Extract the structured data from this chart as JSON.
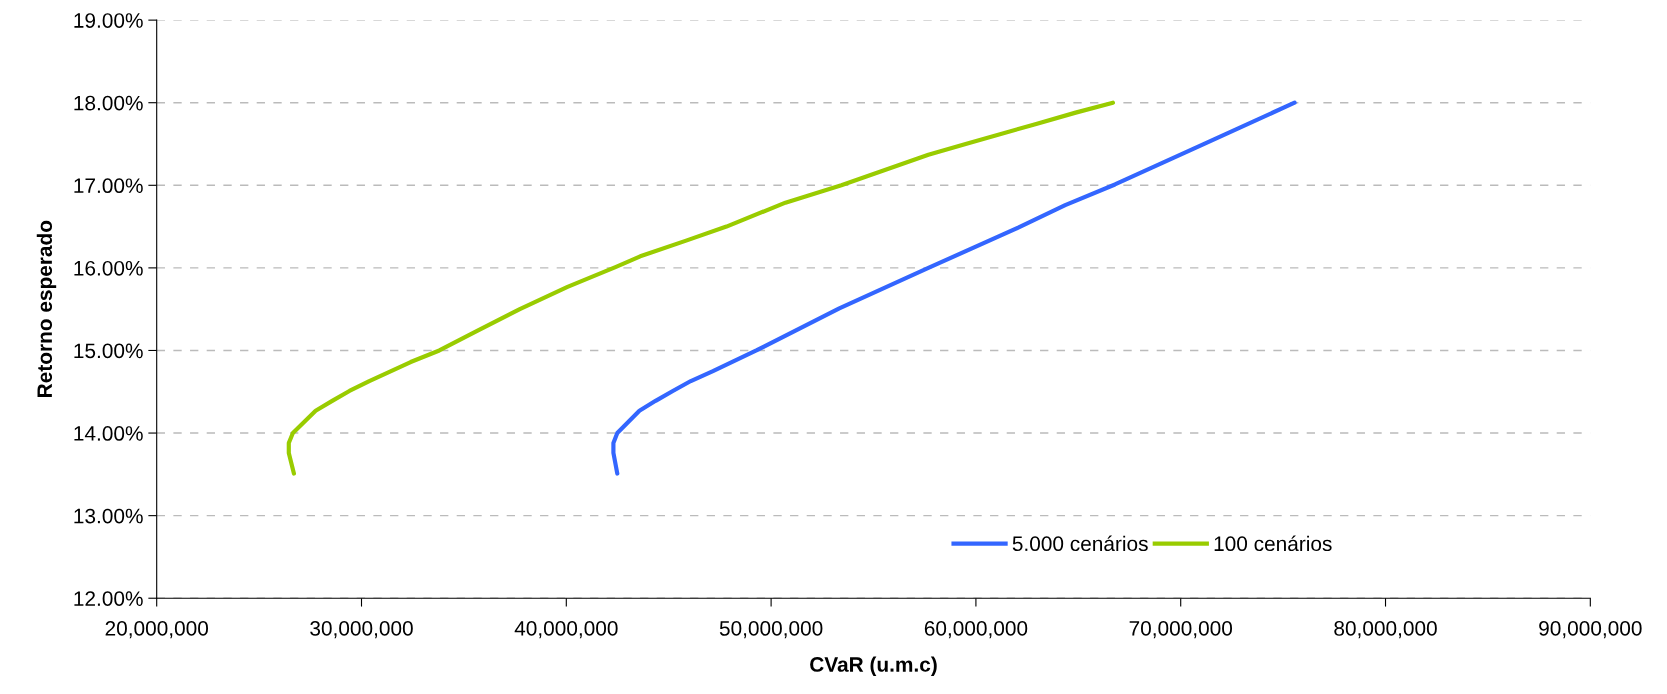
{
  "chart_data": {
    "type": "line",
    "xlabel": "CVaR (u.m.c)",
    "ylabel": "Retorno esperado",
    "xlim": [
      20000000,
      90000000
    ],
    "xticks": [
      {
        "value": 20000000,
        "label": "20,000,000"
      },
      {
        "value": 30000000,
        "label": "30,000,000"
      },
      {
        "value": 40000000,
        "label": "40,000,000"
      },
      {
        "value": 50000000,
        "label": "50,000,000"
      },
      {
        "value": 60000000,
        "label": "60,000,000"
      },
      {
        "value": 70000000,
        "label": "70,000,000"
      },
      {
        "value": 80000000,
        "label": "80,000,000"
      },
      {
        "value": 90000000,
        "label": "90,000,000"
      }
    ],
    "ylim": [
      12,
      19
    ],
    "yticks": [
      {
        "value": 12,
        "label": "12.00%"
      },
      {
        "value": 13,
        "label": "13.00%"
      },
      {
        "value": 14,
        "label": "14.00%"
      },
      {
        "value": 15,
        "label": "15.00%"
      },
      {
        "value": 16,
        "label": "16.00%"
      },
      {
        "value": 17,
        "label": "17.00%"
      },
      {
        "value": 18,
        "label": "18.00%"
      },
      {
        "value": 19,
        "label": "19.00%"
      }
    ],
    "grid": "y",
    "legend": "bottom right",
    "marker": "none",
    "line_style": "solid",
    "series": [
      {
        "name": "5.000 cenários",
        "color": "#3366ff",
        "x": [
          42490000,
          42300000,
          42300000,
          42490000,
          43570000,
          44360000,
          45200000,
          46080000,
          47160000,
          49280000,
          53330000,
          57680000,
          62090000,
          64360000,
          66790000,
          71040000,
          75560000
        ],
        "values": [
          13.51,
          13.76,
          13.88,
          14.0,
          14.27,
          14.39,
          14.51,
          14.63,
          14.75,
          15.0,
          15.51,
          16.0,
          16.49,
          16.76,
          17.01,
          17.49,
          18.0
        ]
      },
      {
        "name": "100 cenários",
        "color": "#99cc00",
        "x": [
          26700000,
          26450000,
          26450000,
          26650000,
          27760000,
          28570000,
          29410000,
          30380000,
          32400000,
          33800000,
          35670000,
          37730000,
          40060000,
          42400000,
          43610000,
          45850000,
          47820000,
          50700000,
          53430000,
          57680000,
          59500000,
          62900000,
          64870000,
          66690000
        ],
        "values": [
          13.51,
          13.76,
          13.88,
          14.0,
          14.27,
          14.39,
          14.51,
          14.63,
          14.86,
          15.0,
          15.24,
          15.5,
          15.77,
          16.01,
          16.14,
          16.33,
          16.5,
          16.79,
          17.0,
          17.37,
          17.5,
          17.74,
          17.88,
          18.0
        ]
      }
    ]
  }
}
